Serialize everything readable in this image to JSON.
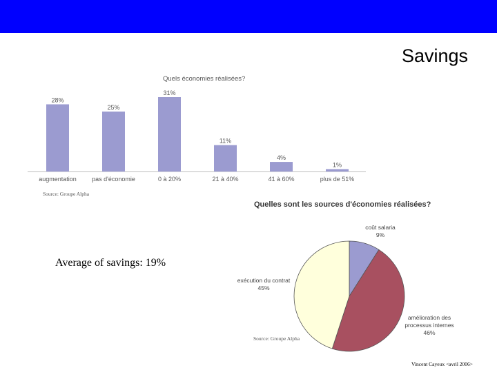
{
  "slide": {
    "title": "Savings",
    "average_text": "Average of savings: 19%",
    "footer": "Vincent Cayeux <avril 2006>"
  },
  "colors": {
    "topbar": "#0000ff",
    "bar": "#9b9bd0",
    "pie_salary": "#9b9bd0",
    "pie_process": "#a85060",
    "pie_contract": "#ffffdc"
  },
  "chart_data": [
    {
      "type": "bar",
      "title": "Quels économies réalisées?",
      "categories": [
        "augmentation",
        "pas d'économie",
        "0 à 20%",
        "21 à 40%",
        "41 à 60%",
        "plus de 51%"
      ],
      "values": [
        28,
        25,
        31,
        11,
        4,
        1
      ],
      "data_labels": [
        "28%",
        "25%",
        "31%",
        "11%",
        "4%",
        "1%"
      ],
      "ylim": [
        0,
        31
      ],
      "source": "Source: Groupe Alpha"
    },
    {
      "type": "pie",
      "title": "Quelles sont les sources d'économies réalisées?",
      "slices": [
        {
          "label": "coût salaria",
          "value": 9,
          "value_label": "9%"
        },
        {
          "label": "amélioration des processus internes",
          "value": 46,
          "value_label": "46%"
        },
        {
          "label": "exécution du contrat",
          "value": 45,
          "value_label": "45%"
        }
      ],
      "source": "Source: Groupe Alpha"
    }
  ]
}
